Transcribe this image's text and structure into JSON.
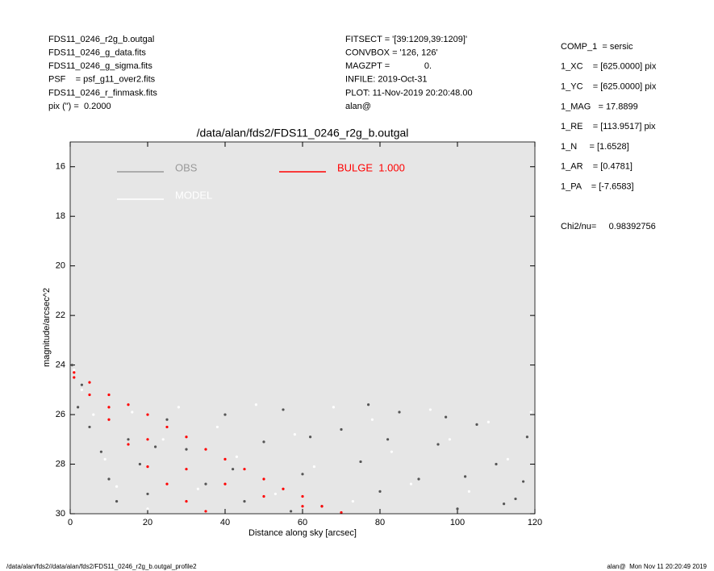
{
  "header": {
    "left": [
      "FDS11_0246_r2g_b.outgal",
      "FDS11_0246_g_data.fits",
      "FDS11_0246_g_sigma.fits",
      "PSF    = psf_g11_over2.fits",
      "FDS11_0246_r_finmask.fits",
      "pix (\") =  0.2000"
    ],
    "middle": [
      "FITSECT = '[39:1209,39:1209]'",
      "CONVBOX = '126, 126'",
      "MAGZPT =              0.",
      "INFILE: 2019-Oct-31",
      "PLOT: 11-Nov-2019 20:20:48.00",
      "alan@"
    ],
    "right": [
      "COMP_1  = sersic",
      "1_XC    = [625.0000] pix",
      "1_YC    = [625.0000] pix",
      "1_MAG   = 17.8899",
      "1_RE    = [113.9517] pix",
      "1_N     = [1.6528]",
      "1_AR    = [0.4781]",
      "1_PA    = [-7.6583]"
    ],
    "chi2": "Chi2/nu=     0.98392756"
  },
  "footer": {
    "left": "/data/alan/fds2//data/alan/fds2/FDS11_0246_r2g_b.outgal_profile2",
    "right": "alan@  Mon Nov 11 20:20:49 2019"
  },
  "chart_data": {
    "type": "scatter",
    "title": "/data/alan/fds2/FDS11_0246_r2g_b.outgal",
    "xlabel": "Distance along sky [arcsec]",
    "ylabel": "magnitude/arcsec^2",
    "xlim": [
      0,
      120
    ],
    "xticks": [
      0,
      20,
      40,
      60,
      80,
      100,
      120
    ],
    "ylim": [
      30,
      15
    ],
    "yticks": [
      16,
      18,
      20,
      22,
      24,
      26,
      28,
      30
    ],
    "series": [
      {
        "name": "OBS",
        "color": "#555555",
        "x": [
          0.5,
          2,
          3,
          5,
          8,
          10,
          12,
          15,
          18,
          20,
          25,
          30,
          35,
          40,
          45,
          50,
          55,
          60,
          65,
          70,
          75,
          80,
          85,
          90,
          95,
          100,
          105,
          110,
          115,
          118,
          22,
          42,
          62,
          82,
          102,
          112,
          57,
          77,
          97,
          117
        ],
        "values": [
          24.0,
          25.7,
          24.8,
          26.5,
          27.5,
          28.6,
          29.5,
          27.0,
          28.0,
          29.2,
          26.2,
          27.4,
          28.8,
          26.0,
          29.5,
          27.1,
          25.8,
          28.4,
          29.7,
          26.6,
          27.9,
          29.1,
          25.9,
          28.6,
          27.2,
          29.8,
          26.4,
          28.0,
          29.4,
          26.9,
          27.3,
          28.2,
          26.9,
          27.0,
          28.5,
          29.6,
          29.9,
          25.6,
          26.1,
          28.7
        ]
      },
      {
        "name": "MODEL",
        "color": "#ffffff",
        "x": [
          1,
          3,
          6,
          9,
          12,
          16,
          20,
          24,
          28,
          33,
          38,
          43,
          48,
          53,
          58,
          63,
          68,
          73,
          78,
          83,
          88,
          93,
          98,
          103,
          108,
          113,
          119
        ],
        "values": [
          24.2,
          25.0,
          26.0,
          27.8,
          28.9,
          25.9,
          29.8,
          27.0,
          25.7,
          29.0,
          26.5,
          27.7,
          25.6,
          29.2,
          26.8,
          28.1,
          25.7,
          29.5,
          26.2,
          27.5,
          28.8,
          25.8,
          27.0,
          29.1,
          26.3,
          27.8,
          25.9
        ]
      },
      {
        "name": "BULGE  1.000",
        "color": "#ff0000",
        "x": [
          1,
          1,
          5,
          5,
          10,
          10,
          10,
          15,
          15,
          20,
          20,
          20,
          25,
          25,
          30,
          30,
          30,
          35,
          35,
          40,
          40,
          45,
          50,
          50,
          55,
          60,
          60,
          65,
          70
        ],
        "values": [
          24.3,
          24.5,
          24.7,
          25.2,
          25.2,
          25.7,
          26.2,
          25.6,
          27.2,
          26.0,
          27.0,
          28.1,
          26.5,
          28.8,
          26.9,
          28.2,
          29.5,
          27.4,
          29.9,
          27.8,
          28.8,
          28.2,
          28.6,
          29.3,
          29.0,
          29.3,
          29.7,
          29.7,
          29.95
        ]
      }
    ]
  }
}
